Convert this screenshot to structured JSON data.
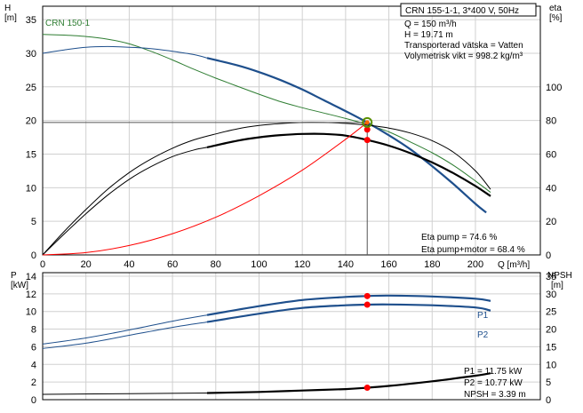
{
  "chart_data": [
    {
      "type": "line",
      "title": "CRN 155-1-1, 3*400 V, 50Hz",
      "curve_label": "CRN 150-1",
      "left_axis": {
        "label": "H",
        "unit": "[m]",
        "ylim": [
          0,
          37
        ],
        "ticks": [
          0,
          5,
          10,
          15,
          20,
          25,
          30,
          35
        ]
      },
      "right_axis": {
        "label": "eta",
        "unit": "[%]",
        "ylim": [
          0,
          148
        ],
        "ticks": [
          0,
          20,
          40,
          60,
          80,
          100
        ]
      },
      "x_axis": {
        "label": "Q [m³/h]",
        "xlim": [
          0,
          230
        ],
        "ticks": [
          0,
          20,
          40,
          60,
          80,
          100,
          120,
          140,
          160,
          180,
          200
        ]
      },
      "info_lines": [
        "Q = 150 m³/h",
        "H = 19.71 m",
        "Transporterad vätska = Vatten",
        "Volymetrisk vikt = 998.2 kg/m³"
      ],
      "eta_labels": [
        "Eta pump = 74.6 %",
        "Eta pump+motor = 68.4 %"
      ],
      "duty_point": {
        "q": 150,
        "h": 19.71,
        "eta_pump": 74.6,
        "eta_pump_motor": 68.4
      },
      "series": [
        {
          "axis": "left",
          "color": "#2e7d32",
          "width": 1,
          "x": [
            0,
            10,
            20,
            30,
            40,
            50,
            60,
            70,
            80,
            90,
            100,
            110,
            120,
            130,
            140,
            150,
            160,
            170,
            180,
            190,
            200,
            207
          ],
          "values": [
            32.8,
            32.7,
            32.5,
            32.1,
            31.4,
            30.3,
            29.0,
            27.6,
            26.3,
            25.1,
            23.9,
            22.8,
            21.9,
            21.1,
            20.3,
            19.4,
            18.3,
            16.8,
            15.2,
            13.3,
            11.0,
            9.3
          ]
        },
        {
          "axis": "left",
          "color": "#1e4f8c",
          "width": 1,
          "x": [
            0,
            10,
            20,
            30,
            40,
            50,
            60,
            70,
            76
          ],
          "values": [
            30.0,
            30.5,
            30.9,
            31.0,
            30.9,
            30.7,
            30.3,
            29.8,
            29.3
          ]
        },
        {
          "axis": "left",
          "color": "#1e4f8c",
          "width": 2.2,
          "x": [
            76,
            90,
            100,
            110,
            120,
            130,
            140,
            150,
            160,
            170,
            180,
            190,
            200,
            205
          ],
          "values": [
            29.3,
            28.2,
            27.2,
            26.0,
            24.6,
            23.0,
            21.4,
            19.7,
            17.8,
            15.7,
            13.2,
            10.5,
            7.6,
            6.3
          ]
        },
        {
          "axis": "right",
          "color": "#000000",
          "width": 1,
          "x": [
            0,
            10,
            20,
            30,
            40,
            50,
            60,
            70,
            80,
            90,
            100,
            110,
            120,
            130,
            140,
            150,
            160,
            170,
            180,
            190,
            200,
            207
          ],
          "values": [
            0,
            14,
            27,
            39,
            49,
            57,
            63.5,
            68.5,
            72,
            75,
            77,
            78.2,
            78.8,
            78.8,
            78.3,
            77.2,
            75.5,
            72.5,
            68,
            61,
            50,
            39
          ]
        },
        {
          "axis": "right",
          "color": "#000000",
          "width": 1,
          "x": [
            0,
            10,
            20,
            30,
            40,
            50,
            60,
            70,
            76
          ],
          "values": [
            0,
            12.5,
            24.5,
            35.5,
            45,
            52.5,
            58.5,
            62.5,
            64
          ]
        },
        {
          "axis": "right",
          "color": "#000000",
          "width": 2.2,
          "x": [
            76,
            90,
            100,
            110,
            120,
            130,
            140,
            150,
            160,
            170,
            180,
            190,
            200,
            207
          ],
          "values": [
            64,
            68,
            70,
            71.3,
            72,
            72,
            71,
            68.4,
            65,
            60.5,
            55,
            48.5,
            41,
            35
          ]
        },
        {
          "axis": "left",
          "color": "#ff0000",
          "width": 1,
          "x": [
            0,
            20,
            40,
            60,
            80,
            100,
            120,
            140,
            150
          ],
          "values": [
            0,
            0.35,
            1.4,
            3.16,
            5.6,
            8.8,
            12.6,
            17.2,
            19.71
          ]
        }
      ]
    },
    {
      "type": "line",
      "left_axis": {
        "label": "P",
        "unit": "[kW]",
        "ylim": [
          0,
          14.4
        ],
        "ticks": [
          0,
          2,
          4,
          6,
          8,
          10,
          12,
          14
        ]
      },
      "right_axis": {
        "label": "NPSH",
        "unit": "[m]",
        "ylim": [
          0,
          36
        ],
        "ticks": [
          0,
          5,
          10,
          15,
          20,
          25,
          30,
          35
        ]
      },
      "info_lines": [
        "P1 = 11.75 kW",
        "P2 = 10.77 kW",
        "NPSH = 3.39 m"
      ],
      "series": [
        {
          "name": "P1",
          "axis": "left",
          "color": "#1e4f8c",
          "width": 1,
          "x": [
            0,
            20,
            40,
            60,
            76
          ],
          "values": [
            6.3,
            7.0,
            7.9,
            8.9,
            9.6
          ]
        },
        {
          "name": "P1",
          "axis": "left",
          "color": "#1e4f8c",
          "width": 2.2,
          "x": [
            76,
            100,
            120,
            140,
            150,
            160,
            180,
            200,
            207
          ],
          "values": [
            9.6,
            10.6,
            11.3,
            11.65,
            11.75,
            11.8,
            11.7,
            11.45,
            11.2
          ]
        },
        {
          "name": "P2",
          "axis": "left",
          "color": "#1e4f8c",
          "width": 1,
          "x": [
            0,
            20,
            40,
            60,
            76
          ],
          "values": [
            5.8,
            6.4,
            7.3,
            8.2,
            8.8
          ]
        },
        {
          "name": "P2",
          "axis": "left",
          "color": "#1e4f8c",
          "width": 2.2,
          "x": [
            76,
            100,
            120,
            140,
            150,
            160,
            180,
            200,
            207
          ],
          "values": [
            8.8,
            9.75,
            10.4,
            10.7,
            10.77,
            10.8,
            10.7,
            10.45,
            10.1
          ]
        },
        {
          "name": "NPSH",
          "axis": "right",
          "color": "#000000",
          "width": 1,
          "x": [
            0,
            40,
            76
          ],
          "values": [
            1.5,
            1.7,
            1.9
          ]
        },
        {
          "name": "NPSH",
          "axis": "right",
          "color": "#000000",
          "width": 2.2,
          "x": [
            76,
            100,
            120,
            140,
            150,
            160,
            180,
            200,
            207
          ],
          "values": [
            1.9,
            2.2,
            2.6,
            3.0,
            3.39,
            3.9,
            5.2,
            6.8,
            7.5
          ]
        }
      ],
      "duty_points": [
        {
          "q": 150,
          "value": 11.75,
          "axis": "left"
        },
        {
          "q": 150,
          "value": 10.77,
          "axis": "left"
        },
        {
          "q": 150,
          "value": 3.39,
          "axis": "right"
        }
      ]
    }
  ]
}
